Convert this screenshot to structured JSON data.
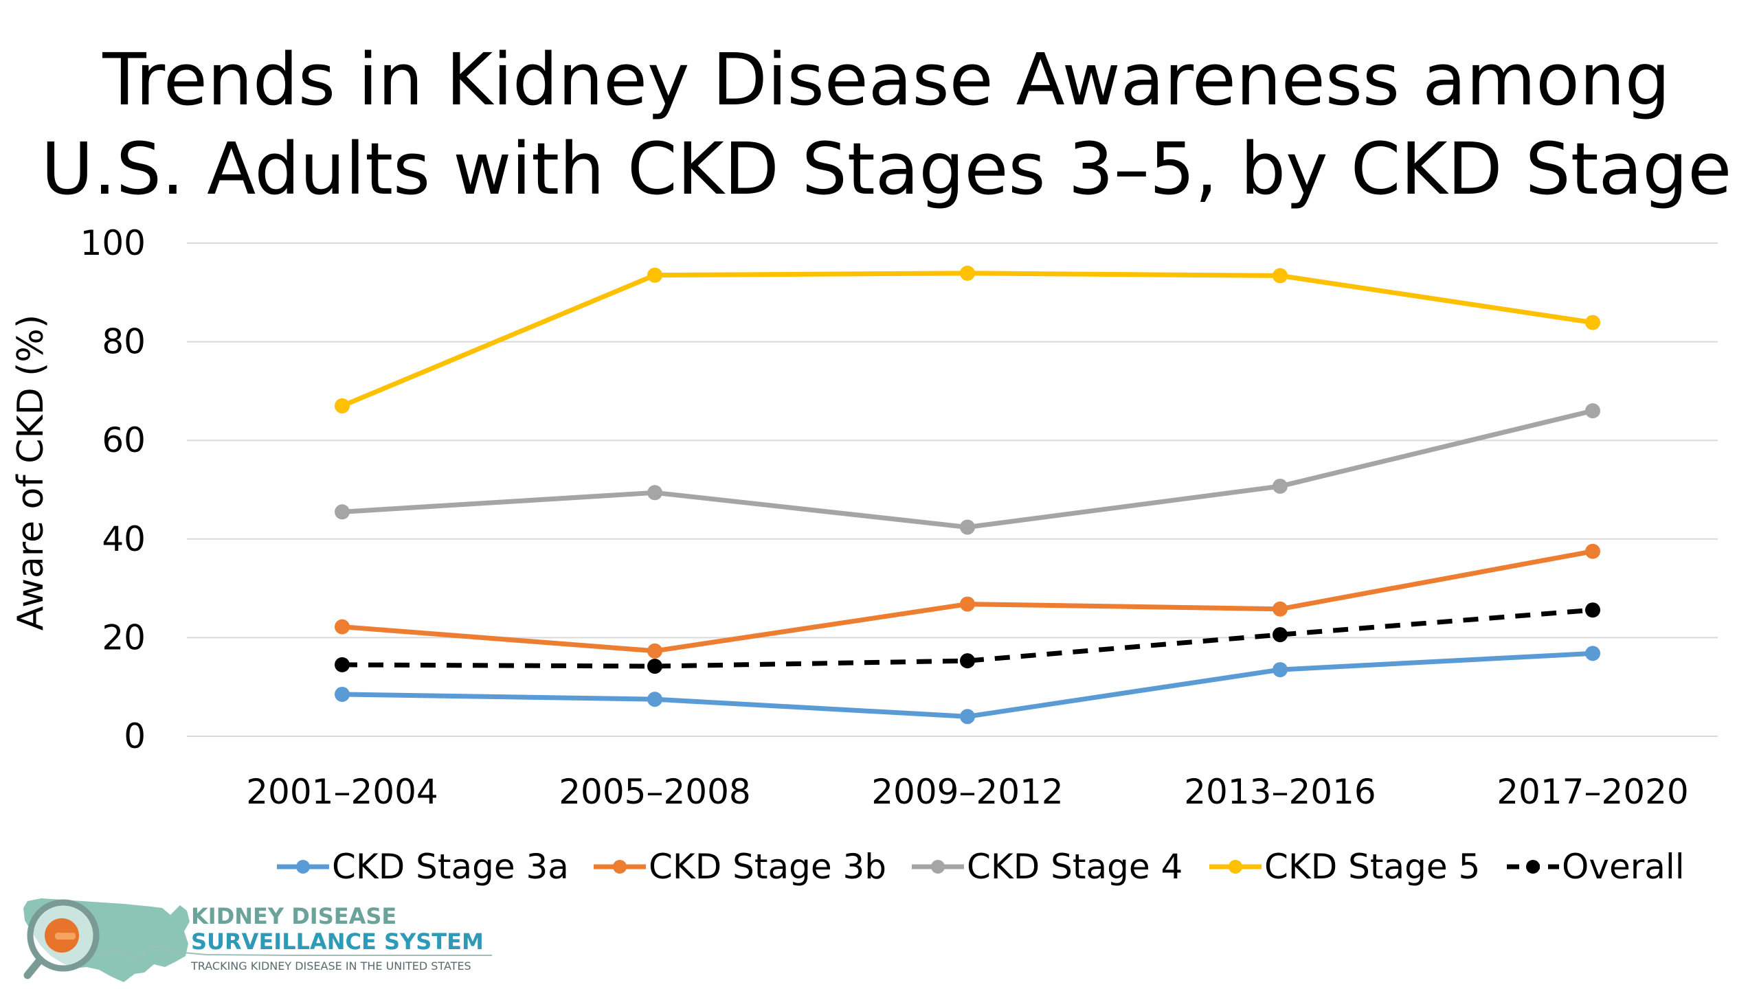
{
  "chart_data": {
    "type": "line",
    "title_lines": [
      "Trends in Kidney Disease Awareness among",
      "U.S. Adults with CKD Stages 3–5, by CKD Stage"
    ],
    "ylabel": "Aware of CKD (%)",
    "xlabel": "",
    "ylim": [
      0,
      100
    ],
    "yticks": [
      0,
      20,
      40,
      60,
      80,
      100
    ],
    "grid": true,
    "legend_position": "bottom",
    "categories": [
      "2001–2004",
      "2005–2008",
      "2009–2012",
      "2013–2016",
      "2017–2020"
    ],
    "series": [
      {
        "name": "CKD Stage 3a",
        "color": "#5B9BD5",
        "dashed": false,
        "values": [
          8.5,
          7.5,
          4.0,
          13.5,
          16.8
        ]
      },
      {
        "name": "CKD Stage 3b",
        "color": "#ED7D31",
        "dashed": false,
        "values": [
          22.2,
          17.3,
          26.8,
          25.8,
          37.5
        ]
      },
      {
        "name": "CKD Stage 4",
        "color": "#A5A5A5",
        "dashed": false,
        "values": [
          45.5,
          49.4,
          42.4,
          50.7,
          66.0
        ]
      },
      {
        "name": "CKD Stage 5",
        "color": "#FFC000",
        "dashed": false,
        "values": [
          67.0,
          93.5,
          93.9,
          93.4,
          83.9
        ]
      },
      {
        "name": "Overall",
        "color": "#000000",
        "dashed": true,
        "values": [
          14.5,
          14.2,
          15.3,
          20.6,
          25.6
        ]
      }
    ]
  },
  "logo": {
    "line1": "KIDNEY DISEASE",
    "line2": "SURVEILLANCE SYSTEM",
    "tagline": "TRACKING KIDNEY DISEASE IN THE UNITED STATES",
    "colors": {
      "line1": "#6BA39B",
      "line2": "#2E9AB8",
      "map": "#8CC5B5",
      "magnifier": "#7A9A95",
      "accent": "#E8732A"
    }
  }
}
